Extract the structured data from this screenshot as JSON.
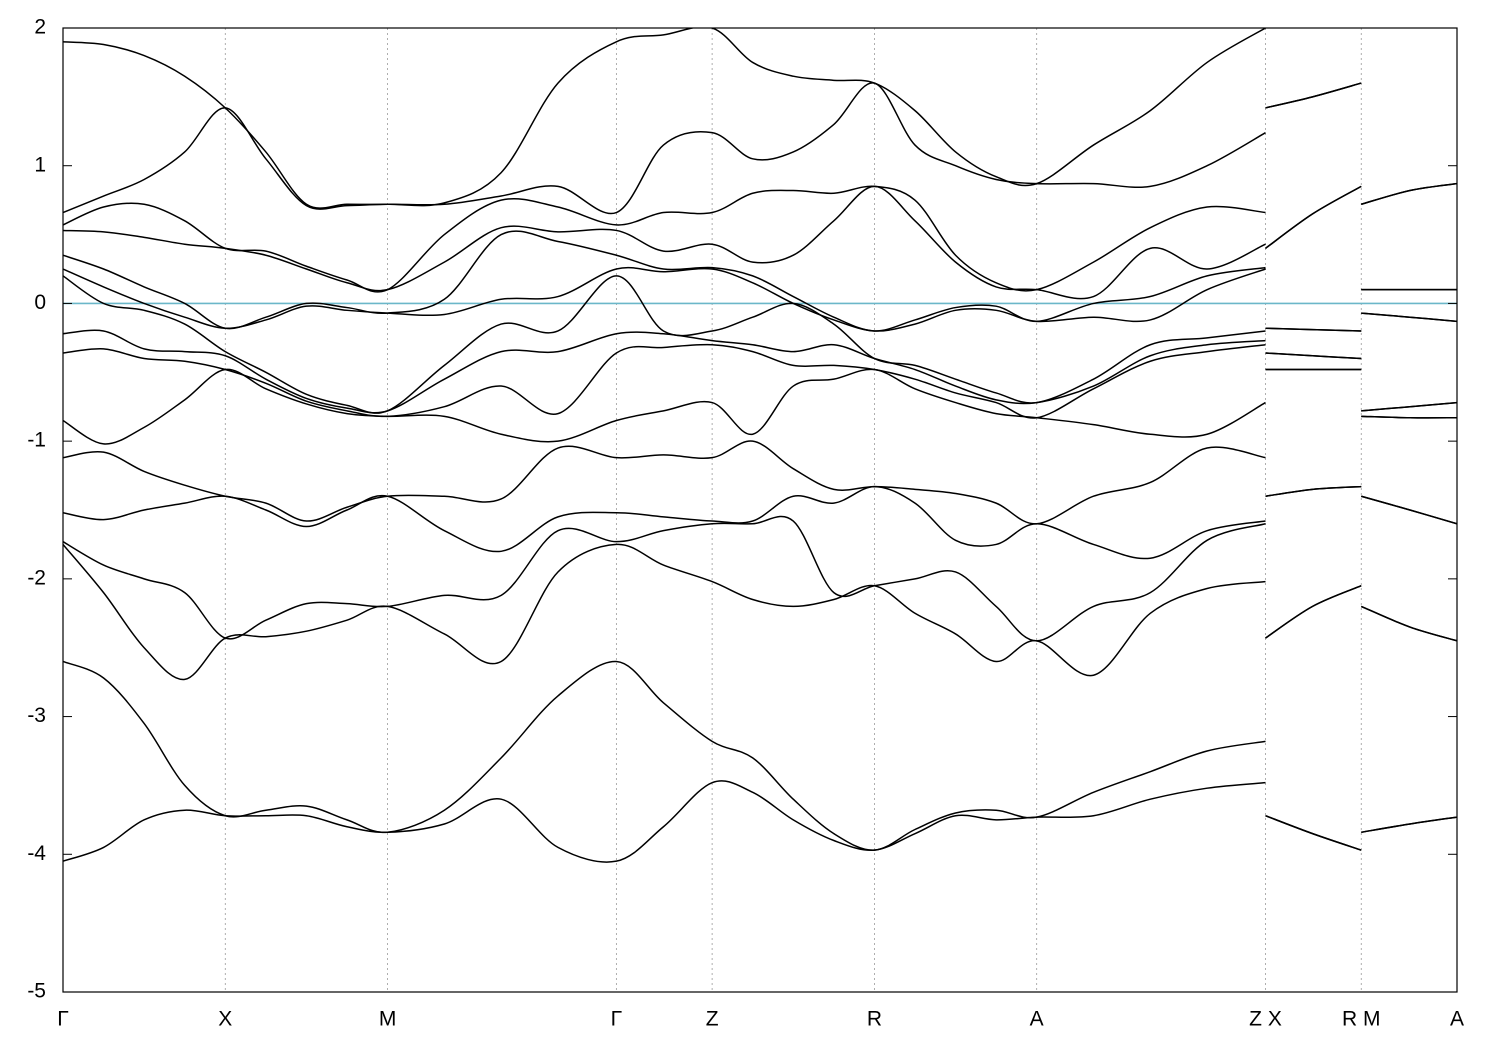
{
  "chart_data": {
    "type": "line",
    "x": [
      0,
      0.25,
      0.5,
      0.75,
      1,
      1.25,
      1.5,
      1.75,
      2,
      2.35,
      2.7,
      3.05,
      3.41,
      3.7,
      4.0,
      4.25,
      4.5,
      4.75,
      5.0,
      5.25,
      5.5,
      5.75,
      6.0,
      6.35,
      6.7,
      7.05,
      7.41,
      7.41,
      7.41,
      7.7,
      8.0,
      8.0,
      8.0,
      8.3,
      8.59
    ],
    "xlim": [
      0,
      8.59
    ],
    "xticks": [
      {
        "value": 0,
        "label": "Γ"
      },
      {
        "value": 1,
        "label": "X"
      },
      {
        "value": 2,
        "label": "M"
      },
      {
        "value": 3.41,
        "label": "Γ"
      },
      {
        "value": 4.0,
        "label": "Z"
      },
      {
        "value": 5.0,
        "label": "R"
      },
      {
        "value": 6.0,
        "label": "A"
      },
      {
        "value": 7.41,
        "label": "Z X"
      },
      {
        "value": 8.0,
        "label": "R M"
      },
      {
        "value": 8.59,
        "label": "A"
      }
    ],
    "ylim": [
      -5,
      2
    ],
    "yticks": [
      -5,
      -4,
      -3,
      -2,
      -1,
      0,
      1,
      2
    ],
    "grid": "x",
    "color": "#000000",
    "hlines": [
      {
        "value": 0,
        "color": "#6bb7c9"
      }
    ],
    "series": [
      {
        "values": [
          -4.05,
          -3.95,
          -3.75,
          -3.68,
          -3.72,
          -3.72,
          -3.72,
          -3.8,
          -3.84,
          -3.78,
          -3.6,
          -3.95,
          -4.05,
          -3.8,
          -3.48,
          -3.55,
          -3.75,
          -3.9,
          -3.97,
          -3.85,
          -3.72,
          -3.75,
          -3.73,
          -3.72,
          -3.6,
          -3.52,
          -3.48,
          null,
          -3.72,
          -3.85,
          -3.97,
          null,
          -3.84,
          -3.78,
          -3.73
        ]
      },
      {
        "values": [
          -2.6,
          -2.72,
          -3.05,
          -3.5,
          -3.72,
          -3.68,
          -3.65,
          -3.75,
          -3.84,
          -3.68,
          -3.3,
          -2.85,
          -2.6,
          -2.9,
          -3.18,
          -3.3,
          -3.6,
          -3.85,
          -3.97,
          -3.82,
          -3.7,
          -3.68,
          -3.73,
          -3.55,
          -3.4,
          -3.25,
          -3.18,
          null,
          -3.72,
          -3.85,
          -3.97,
          null,
          -3.84,
          -3.78,
          -3.73
        ]
      },
      {
        "values": [
          -1.75,
          -2.1,
          -2.5,
          -2.73,
          -2.43,
          -2.42,
          -2.38,
          -2.3,
          -2.2,
          -2.4,
          -2.6,
          -1.95,
          -1.75,
          -1.9,
          -2.02,
          -2.15,
          -2.2,
          -2.15,
          -2.05,
          -2.25,
          -2.4,
          -2.6,
          -2.45,
          -2.7,
          -2.25,
          -2.07,
          -2.02,
          null,
          -2.43,
          -2.2,
          -2.05,
          null,
          -2.2,
          -2.35,
          -2.45
        ]
      },
      {
        "values": [
          -1.73,
          -1.9,
          -2.0,
          -2.1,
          -2.43,
          -2.3,
          -2.18,
          -2.18,
          -2.2,
          -2.12,
          -2.12,
          -1.65,
          -1.73,
          -1.65,
          -1.6,
          -1.6,
          -1.58,
          -2.1,
          -2.05,
          -2.0,
          -1.95,
          -2.2,
          -2.45,
          -2.2,
          -2.1,
          -1.72,
          -1.6,
          null,
          -2.43,
          -2.2,
          -2.05,
          null,
          -2.2,
          -2.35,
          -2.45
        ]
      },
      {
        "values": [
          -1.52,
          -1.57,
          -1.5,
          -1.45,
          -1.4,
          -1.5,
          -1.62,
          -1.5,
          -1.4,
          -1.65,
          -1.8,
          -1.55,
          -1.52,
          -1.55,
          -1.58,
          -1.58,
          -1.4,
          -1.45,
          -1.33,
          -1.45,
          -1.72,
          -1.75,
          -1.6,
          -1.75,
          -1.85,
          -1.65,
          -1.58,
          null,
          -1.4,
          -1.35,
          -1.33,
          null,
          -1.4,
          -1.5,
          -1.6
        ]
      },
      {
        "values": [
          -1.12,
          -1.08,
          -1.22,
          -1.32,
          -1.4,
          -1.45,
          -1.58,
          -1.48,
          -1.4,
          -1.4,
          -1.42,
          -1.05,
          -1.12,
          -1.1,
          -1.12,
          -1.0,
          -1.2,
          -1.35,
          -1.33,
          -1.35,
          -1.38,
          -1.45,
          -1.6,
          -1.4,
          -1.3,
          -1.05,
          -1.12,
          null,
          -1.4,
          -1.35,
          -1.33,
          null,
          -1.4,
          -1.5,
          -1.6
        ]
      },
      {
        "values": [
          -0.85,
          -1.02,
          -0.9,
          -0.7,
          -0.48,
          -0.62,
          -0.73,
          -0.8,
          -0.82,
          -0.82,
          -0.95,
          -1.0,
          -0.85,
          -0.78,
          -0.72,
          -0.95,
          -0.6,
          -0.55,
          -0.48,
          -0.62,
          -0.72,
          -0.8,
          -0.83,
          -0.88,
          -0.95,
          -0.95,
          -0.72,
          null,
          -0.48,
          -0.48,
          -0.48,
          null,
          -0.82,
          -0.83,
          -0.83
        ]
      },
      {
        "values": [
          -0.36,
          -0.33,
          -0.4,
          -0.42,
          -0.48,
          -0.58,
          -0.71,
          -0.78,
          -0.82,
          -0.75,
          -0.6,
          -0.8,
          -0.36,
          -0.32,
          -0.3,
          -0.35,
          -0.45,
          -0.45,
          -0.48,
          -0.55,
          -0.65,
          -0.72,
          -0.83,
          -0.62,
          -0.42,
          -0.35,
          -0.3,
          null,
          -0.48,
          -0.48,
          -0.48,
          null,
          -0.82,
          -0.83,
          -0.83
        ]
      },
      {
        "values": [
          -0.22,
          -0.2,
          -0.33,
          -0.35,
          -0.38,
          -0.55,
          -0.69,
          -0.76,
          -0.78,
          -0.55,
          -0.35,
          -0.35,
          -0.22,
          -0.22,
          -0.27,
          -0.3,
          -0.35,
          -0.3,
          -0.4,
          -0.48,
          -0.6,
          -0.7,
          -0.72,
          -0.6,
          -0.38,
          -0.3,
          -0.27,
          null,
          -0.36,
          -0.38,
          -0.4,
          null,
          -0.78,
          -0.75,
          -0.72
        ]
      },
      {
        "values": [
          0.2,
          0.0,
          -0.05,
          -0.15,
          -0.35,
          -0.5,
          -0.66,
          -0.74,
          -0.78,
          -0.45,
          -0.15,
          -0.2,
          0.2,
          -0.2,
          -0.2,
          -0.1,
          0.0,
          -0.15,
          -0.4,
          -0.45,
          -0.55,
          -0.65,
          -0.72,
          -0.55,
          -0.3,
          -0.25,
          -0.2,
          null,
          -0.36,
          -0.38,
          -0.4,
          null,
          -0.78,
          -0.75,
          -0.72
        ]
      },
      {
        "values": [
          0.25,
          0.12,
          0.0,
          -0.1,
          -0.18,
          -0.12,
          -0.02,
          -0.05,
          -0.07,
          -0.08,
          0.03,
          0.05,
          0.25,
          0.23,
          0.25,
          0.15,
          0.0,
          -0.12,
          -0.2,
          -0.15,
          -0.05,
          -0.05,
          -0.13,
          -0.1,
          -0.12,
          0.1,
          0.25,
          null,
          -0.18,
          -0.19,
          -0.2,
          null,
          -0.07,
          -0.1,
          -0.13
        ]
      },
      {
        "values": [
          0.35,
          0.25,
          0.12,
          0.0,
          -0.18,
          -0.1,
          0.0,
          -0.03,
          -0.07,
          0.03,
          0.5,
          0.45,
          0.35,
          0.25,
          0.26,
          0.2,
          0.05,
          -0.1,
          -0.2,
          -0.12,
          -0.03,
          -0.02,
          -0.13,
          0.0,
          0.05,
          0.2,
          0.26,
          null,
          -0.18,
          -0.19,
          -0.2,
          null,
          -0.07,
          -0.1,
          -0.13
        ]
      },
      {
        "values": [
          0.53,
          0.52,
          0.48,
          0.43,
          0.4,
          0.35,
          0.25,
          0.15,
          0.1,
          0.3,
          0.55,
          0.52,
          0.53,
          0.38,
          0.43,
          0.3,
          0.35,
          0.6,
          0.85,
          0.6,
          0.3,
          0.12,
          0.1,
          0.05,
          0.4,
          0.25,
          0.43,
          null,
          0.4,
          0.65,
          0.85,
          null,
          0.1,
          0.1,
          0.1
        ]
      },
      {
        "values": [
          0.57,
          0.7,
          0.72,
          0.6,
          0.4,
          0.38,
          0.27,
          0.17,
          0.1,
          0.5,
          0.75,
          0.7,
          0.57,
          0.66,
          0.66,
          0.8,
          0.82,
          0.8,
          0.85,
          0.75,
          0.35,
          0.15,
          0.1,
          0.3,
          0.55,
          0.7,
          0.66,
          null,
          0.4,
          0.65,
          0.85,
          null,
          0.1,
          0.1,
          0.1
        ]
      },
      {
        "values": [
          0.66,
          0.78,
          0.9,
          1.1,
          1.42,
          1.05,
          0.71,
          0.71,
          0.72,
          0.72,
          0.78,
          0.85,
          0.66,
          1.15,
          1.24,
          1.05,
          1.1,
          1.3,
          1.6,
          1.15,
          1.0,
          0.9,
          0.87,
          0.87,
          0.85,
          1.0,
          1.24,
          null,
          1.42,
          1.5,
          1.6,
          null,
          0.72,
          0.82,
          0.87
        ]
      },
      {
        "values": [
          1.9,
          1.88,
          1.8,
          1.65,
          1.42,
          1.1,
          0.72,
          0.72,
          0.72,
          0.73,
          0.95,
          1.6,
          1.9,
          1.95,
          2.0,
          1.75,
          1.65,
          1.62,
          1.6,
          1.4,
          1.1,
          0.92,
          0.87,
          1.15,
          1.4,
          1.75,
          2.0,
          null,
          1.42,
          1.5,
          1.6,
          null,
          0.72,
          0.82,
          0.87
        ]
      }
    ]
  }
}
